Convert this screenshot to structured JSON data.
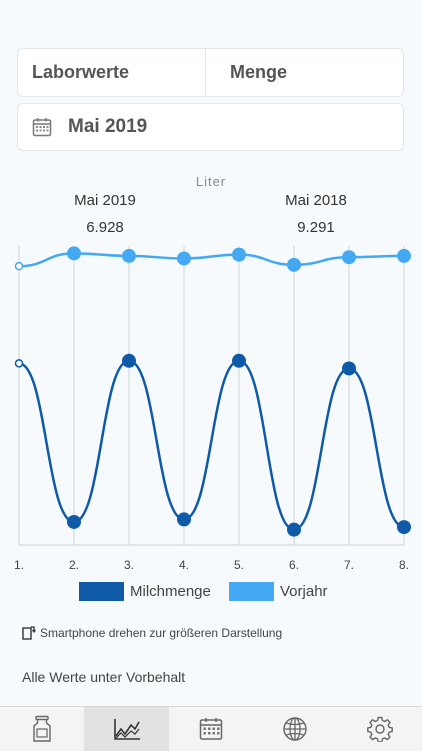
{
  "segment": {
    "left": "Laborwerte",
    "right": "Menge"
  },
  "date_selector": {
    "label": "Mai 2019",
    "icon": "calendar-icon"
  },
  "chart_data": {
    "type": "line",
    "ylabel": "Liter",
    "x": [
      "1.",
      "2.",
      "3.",
      "4.",
      "5.",
      "6.",
      "7.",
      "8."
    ],
    "series": [
      {
        "name": "Milchmenge",
        "color": "#0e5aa7",
        "values": [
          7.1,
          0.9,
          7.2,
          1.0,
          7.2,
          0.6,
          6.9,
          0.7
        ]
      },
      {
        "name": "Vorjahr",
        "color": "#45a8f2",
        "values": [
          10.9,
          11.4,
          11.3,
          11.2,
          11.35,
          10.95,
          11.25,
          11.3
        ]
      }
    ],
    "ylim": [
      0,
      12
    ],
    "summaries": [
      {
        "label": "Mai 2019",
        "value": "6.928"
      },
      {
        "label": "Mai 2018",
        "value": "9.291"
      }
    ],
    "grid": "vertical"
  },
  "hint": {
    "text": "Smartphone drehen zur größeren Darstellung",
    "icon": "rotate-phone-icon"
  },
  "disclaimer": "Alle Werte unter Vorbehalt",
  "tabbar": {
    "items": [
      {
        "name": "milk-can-icon",
        "active": false
      },
      {
        "name": "chart-icon",
        "active": true
      },
      {
        "name": "calendar-icon",
        "active": false
      },
      {
        "name": "globe-icon",
        "active": false
      },
      {
        "name": "gear-icon",
        "active": false
      }
    ]
  }
}
